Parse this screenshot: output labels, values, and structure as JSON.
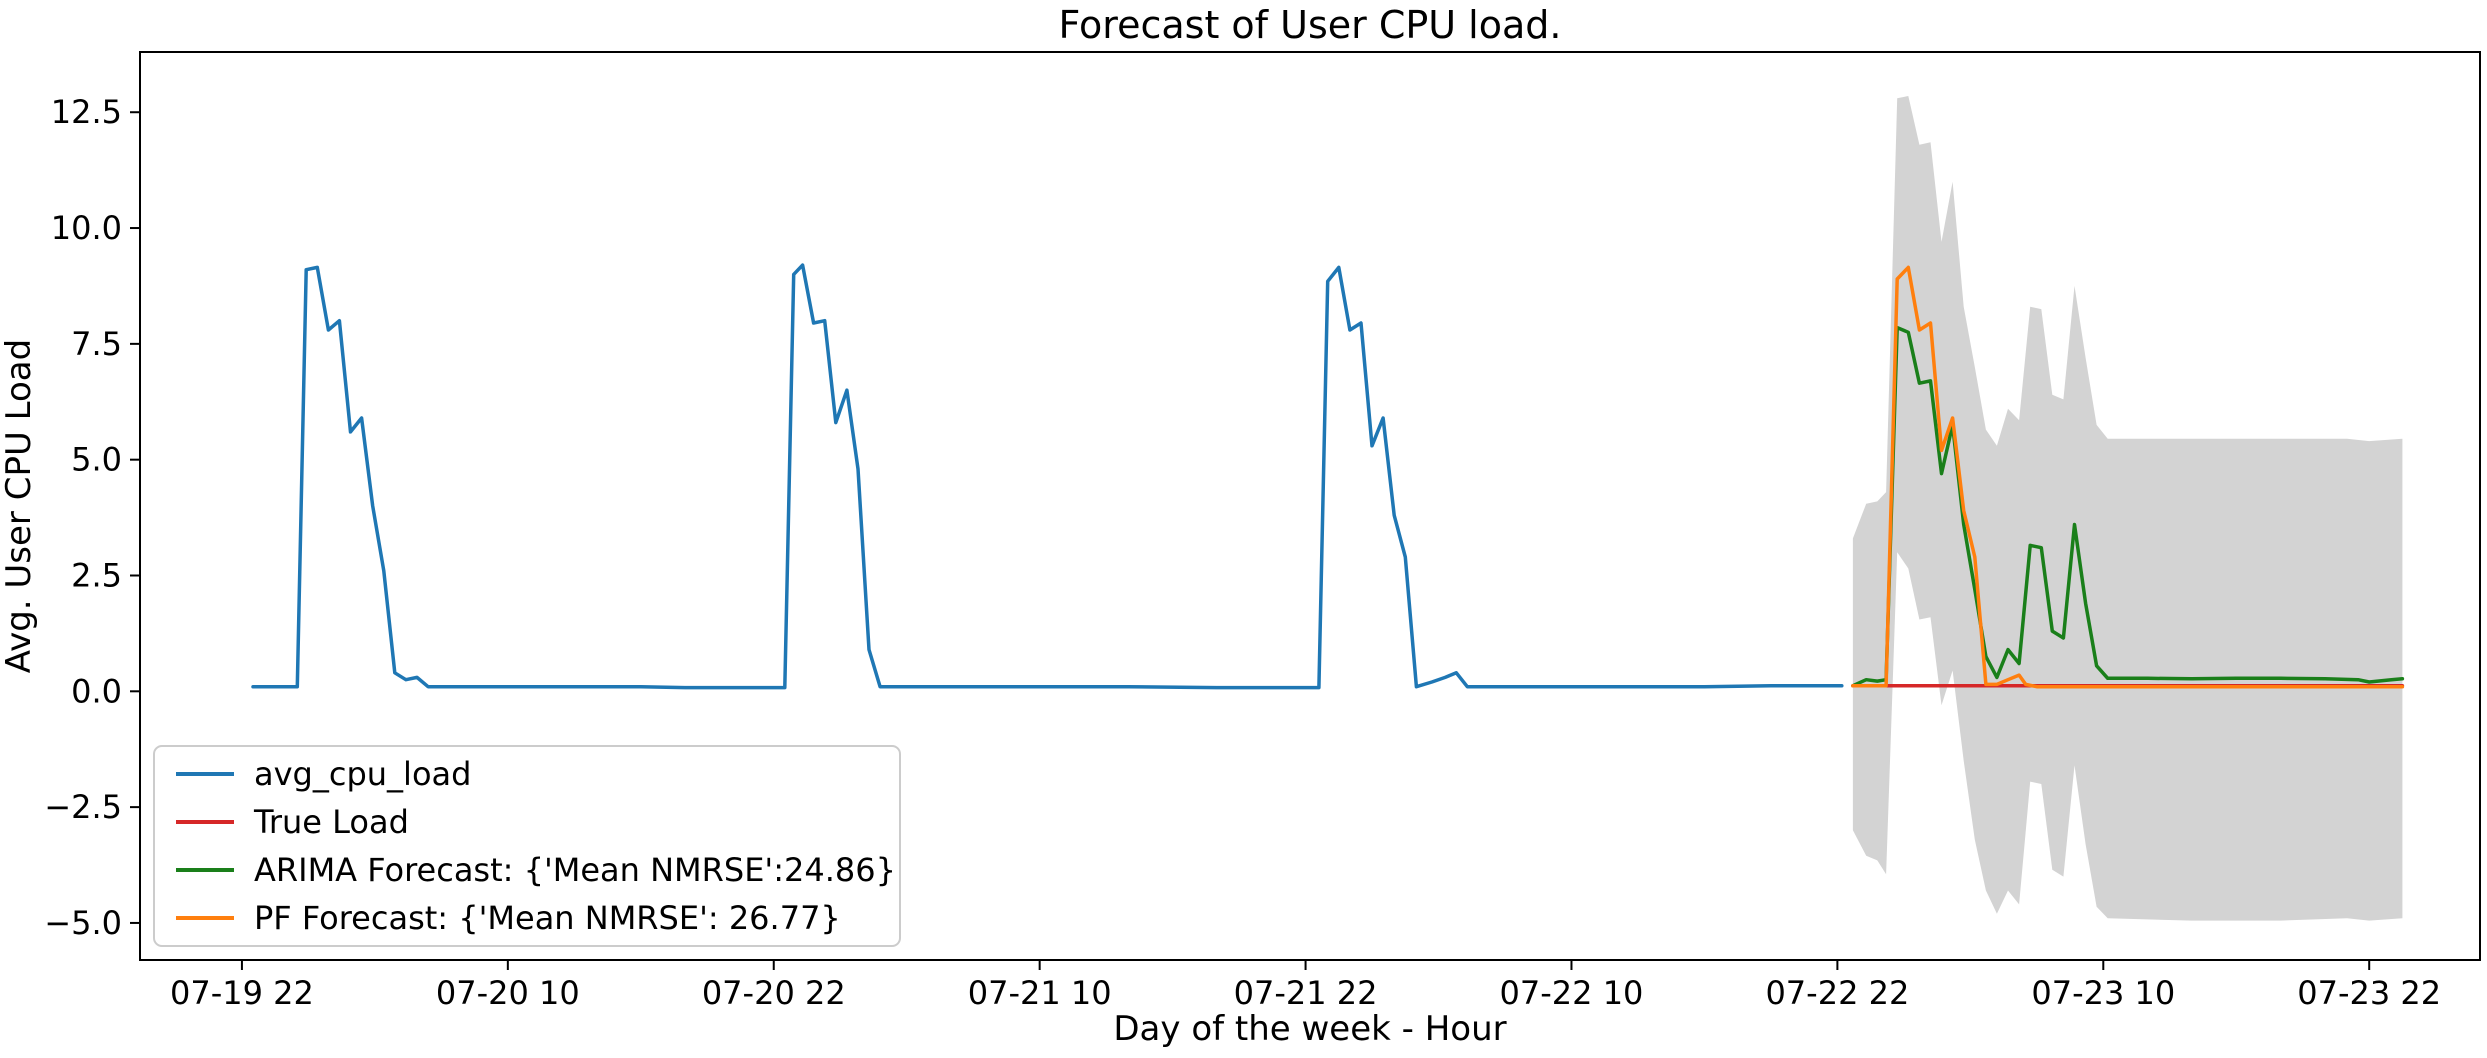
{
  "chart_data": {
    "type": "line",
    "title": "Forecast of User CPU load.",
    "xlabel": "Day of the week - Hour",
    "ylabel": "Avg. User CPU Load",
    "x_unit": "hours",
    "x_ticks": [
      {
        "x": 0,
        "label": "07-19 22"
      },
      {
        "x": 12,
        "label": "07-20 10"
      },
      {
        "x": 24,
        "label": "07-20 22"
      },
      {
        "x": 36,
        "label": "07-21 10"
      },
      {
        "x": 48,
        "label": "07-21 22"
      },
      {
        "x": 60,
        "label": "07-22 10"
      },
      {
        "x": 72,
        "label": "07-22 22"
      },
      {
        "x": 84,
        "label": "07-23 10"
      },
      {
        "x": 96,
        "label": "07-23 22"
      }
    ],
    "y_ticks": [
      {
        "y": -5.0,
        "label": "−5.0"
      },
      {
        "y": -2.5,
        "label": "−2.5"
      },
      {
        "y": 0.0,
        "label": "0.0"
      },
      {
        "y": 2.5,
        "label": "2.5"
      },
      {
        "y": 5.0,
        "label": "5.0"
      },
      {
        "y": 7.5,
        "label": "7.5"
      },
      {
        "y": 10.0,
        "label": "10.0"
      },
      {
        "y": 12.5,
        "label": "12.5"
      }
    ],
    "xlim": [
      -4.6,
      101.0
    ],
    "ylim": [
      -5.8,
      13.8
    ],
    "grid": false,
    "legend_position": "bottom-left",
    "series": [
      {
        "name": "avg_cpu_load",
        "color": "#1f77b4",
        "points": [
          [
            0.5,
            0.1
          ],
          [
            1.5,
            0.1
          ],
          [
            2,
            0.1
          ],
          [
            2.5,
            0.1
          ],
          [
            2.9,
            9.1
          ],
          [
            3.4,
            9.15
          ],
          [
            3.9,
            7.8
          ],
          [
            4.4,
            8.0
          ],
          [
            4.9,
            5.6
          ],
          [
            5.4,
            5.9
          ],
          [
            5.9,
            4.0
          ],
          [
            6.4,
            2.6
          ],
          [
            6.9,
            0.4
          ],
          [
            7.4,
            0.25
          ],
          [
            7.9,
            0.3
          ],
          [
            8.4,
            0.1
          ],
          [
            10,
            0.1
          ],
          [
            14,
            0.1
          ],
          [
            18,
            0.1
          ],
          [
            20,
            0.08
          ],
          [
            24.5,
            0.08
          ],
          [
            24.9,
            9.0
          ],
          [
            25.3,
            9.2
          ],
          [
            25.8,
            7.95
          ],
          [
            26.3,
            8.0
          ],
          [
            26.8,
            5.8
          ],
          [
            27.3,
            6.5
          ],
          [
            27.8,
            4.8
          ],
          [
            28.3,
            0.9
          ],
          [
            28.8,
            0.1
          ],
          [
            30,
            0.1
          ],
          [
            36,
            0.1
          ],
          [
            40,
            0.1
          ],
          [
            44,
            0.08
          ],
          [
            48.6,
            0.08
          ],
          [
            49,
            8.85
          ],
          [
            49.5,
            9.15
          ],
          [
            50,
            7.8
          ],
          [
            50.5,
            7.95
          ],
          [
            51,
            5.3
          ],
          [
            51.5,
            5.9
          ],
          [
            52,
            3.8
          ],
          [
            52.5,
            2.9
          ],
          [
            53,
            0.1
          ],
          [
            53.7,
            0.2
          ],
          [
            54.3,
            0.3
          ],
          [
            54.8,
            0.4
          ],
          [
            55.3,
            0.1
          ],
          [
            58,
            0.1
          ],
          [
            62,
            0.1
          ],
          [
            66,
            0.1
          ],
          [
            69,
            0.12
          ],
          [
            72.2,
            0.12
          ]
        ]
      },
      {
        "name": "True Load",
        "color": "#d62728",
        "points": [
          [
            72.7,
            0.12
          ],
          [
            76,
            0.12
          ],
          [
            80,
            0.12
          ],
          [
            86,
            0.12
          ],
          [
            92,
            0.12
          ],
          [
            97.5,
            0.12
          ]
        ]
      },
      {
        "name": "ARIMA Forecast: {'Mean NMRSE':24.86}",
        "color": "#1a7f1a",
        "points": [
          [
            72.7,
            0.12
          ],
          [
            73.3,
            0.25
          ],
          [
            73.8,
            0.22
          ],
          [
            74.2,
            0.25
          ],
          [
            74.7,
            7.85
          ],
          [
            75.2,
            7.75
          ],
          [
            75.7,
            6.65
          ],
          [
            76.2,
            6.7
          ],
          [
            76.7,
            4.7
          ],
          [
            77.2,
            5.75
          ],
          [
            77.7,
            3.6
          ],
          [
            78.2,
            2.2
          ],
          [
            78.7,
            0.75
          ],
          [
            79.2,
            0.3
          ],
          [
            79.7,
            0.9
          ],
          [
            80.2,
            0.6
          ],
          [
            80.7,
            3.15
          ],
          [
            81.2,
            3.1
          ],
          [
            81.7,
            1.3
          ],
          [
            82.2,
            1.15
          ],
          [
            82.7,
            3.6
          ],
          [
            83.2,
            1.9
          ],
          [
            83.7,
            0.55
          ],
          [
            84.2,
            0.28
          ],
          [
            86,
            0.28
          ],
          [
            88,
            0.27
          ],
          [
            90,
            0.28
          ],
          [
            92,
            0.28
          ],
          [
            94,
            0.27
          ],
          [
            95.5,
            0.25
          ],
          [
            96,
            0.2
          ],
          [
            97,
            0.25
          ],
          [
            97.5,
            0.27
          ]
        ]
      },
      {
        "name": "PF Forecast: {'Mean NMRSE': 26.77}",
        "color": "#ff7f0e",
        "points": [
          [
            72.7,
            0.12
          ],
          [
            74.2,
            0.12
          ],
          [
            74.7,
            8.9
          ],
          [
            75.2,
            9.15
          ],
          [
            75.7,
            7.8
          ],
          [
            76.2,
            7.95
          ],
          [
            76.7,
            5.2
          ],
          [
            77.2,
            5.9
          ],
          [
            77.7,
            3.9
          ],
          [
            78.2,
            2.9
          ],
          [
            78.7,
            0.15
          ],
          [
            79.2,
            0.15
          ],
          [
            79.7,
            0.25
          ],
          [
            80.2,
            0.35
          ],
          [
            80.5,
            0.15
          ],
          [
            81,
            0.1
          ],
          [
            84,
            0.1
          ],
          [
            90,
            0.1
          ],
          [
            97.5,
            0.1
          ]
        ]
      }
    ],
    "confidence_band": {
      "color": "#d3d3d3",
      "upper": [
        [
          72.7,
          3.3
        ],
        [
          73.3,
          4.05
        ],
        [
          73.8,
          4.1
        ],
        [
          74.2,
          4.3
        ],
        [
          74.7,
          12.8
        ],
        [
          75.2,
          12.85
        ],
        [
          75.7,
          11.8
        ],
        [
          76.2,
          11.85
        ],
        [
          76.7,
          9.7
        ],
        [
          77.2,
          11.0
        ],
        [
          77.7,
          8.3
        ],
        [
          78.2,
          7.0
        ],
        [
          78.7,
          5.65
        ],
        [
          79.2,
          5.3
        ],
        [
          79.7,
          6.1
        ],
        [
          80.2,
          5.85
        ],
        [
          80.7,
          8.3
        ],
        [
          81.2,
          8.25
        ],
        [
          81.7,
          6.4
        ],
        [
          82.2,
          6.3
        ],
        [
          82.7,
          8.75
        ],
        [
          83.2,
          7.2
        ],
        [
          83.7,
          5.75
        ],
        [
          84.2,
          5.45
        ],
        [
          88,
          5.45
        ],
        [
          92,
          5.45
        ],
        [
          95,
          5.45
        ],
        [
          96,
          5.4
        ],
        [
          97.5,
          5.45
        ]
      ],
      "lower": [
        [
          72.7,
          -3.0
        ],
        [
          73.3,
          -3.55
        ],
        [
          73.8,
          -3.65
        ],
        [
          74.2,
          -3.95
        ],
        [
          74.7,
          3.0
        ],
        [
          75.2,
          2.65
        ],
        [
          75.7,
          1.55
        ],
        [
          76.2,
          1.6
        ],
        [
          76.7,
          -0.3
        ],
        [
          77.2,
          0.45
        ],
        [
          77.7,
          -1.5
        ],
        [
          78.2,
          -3.2
        ],
        [
          78.7,
          -4.3
        ],
        [
          79.2,
          -4.8
        ],
        [
          79.7,
          -4.3
        ],
        [
          80.2,
          -4.6
        ],
        [
          80.7,
          -1.95
        ],
        [
          81.2,
          -2.0
        ],
        [
          81.7,
          -3.85
        ],
        [
          82.2,
          -4.0
        ],
        [
          82.7,
          -1.6
        ],
        [
          83.2,
          -3.3
        ],
        [
          83.7,
          -4.65
        ],
        [
          84.2,
          -4.9
        ],
        [
          88,
          -4.95
        ],
        [
          92,
          -4.95
        ],
        [
          95,
          -4.9
        ],
        [
          96,
          -4.95
        ],
        [
          97.5,
          -4.9
        ]
      ]
    }
  }
}
